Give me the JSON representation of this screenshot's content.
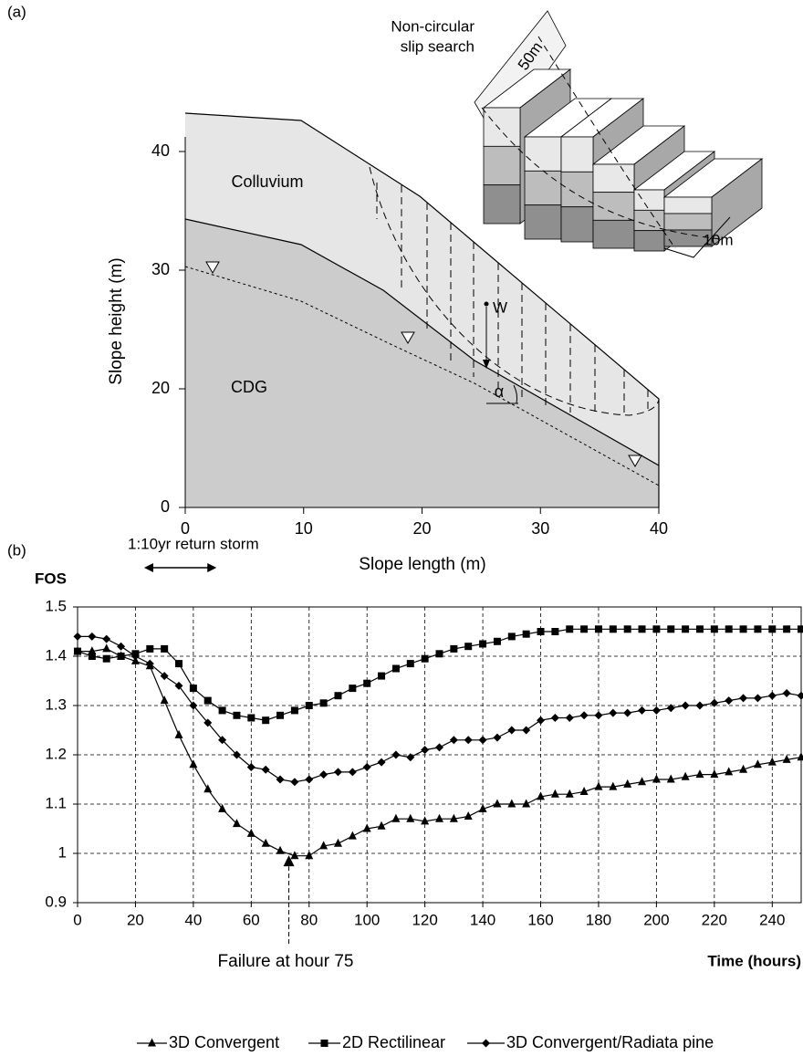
{
  "chart_data": [
    {
      "type": "profile",
      "panel_label": "(a)",
      "xlabel": "Slope length (m)",
      "ylabel": "Slope height (m)",
      "xlim": [
        0,
        40
      ],
      "ylim": [
        10,
        43
      ],
      "xticks": [
        0,
        10,
        20,
        30,
        40
      ],
      "yticks": [
        {
          "value": 10,
          "label": "0"
        },
        20,
        30,
        40
      ],
      "layers": [
        "Colluvium",
        "CDG"
      ],
      "weight_label": "W",
      "angle_label": "α",
      "search_label": [
        "Non-circular",
        "slip search"
      ],
      "length_label": "50m",
      "width_label": "10m"
    },
    {
      "type": "line",
      "panel_label": "(b)",
      "ylabel": "FOS",
      "xlabel": "Time (hours)",
      "xlim": [
        0,
        250
      ],
      "ylim": [
        0.9,
        1.5
      ],
      "xticks": [
        0,
        20,
        40,
        60,
        80,
        100,
        120,
        140,
        160,
        180,
        200,
        220,
        240
      ],
      "yticks": [
        0.9,
        1,
        1.1,
        1.2,
        1.3,
        1.4,
        1.5
      ],
      "grid": true,
      "x": [
        0,
        5,
        10,
        15,
        20,
        25,
        30,
        35,
        40,
        45,
        50,
        55,
        60,
        65,
        70,
        75,
        80,
        85,
        90,
        95,
        100,
        105,
        110,
        115,
        120,
        125,
        130,
        135,
        140,
        145,
        150,
        155,
        160,
        165,
        170,
        175,
        180,
        185,
        190,
        195,
        200,
        205,
        210,
        215,
        220,
        225,
        230,
        235,
        240,
        245,
        250
      ],
      "series": [
        {
          "name": "3D Convergent",
          "color": "#000000",
          "marker": "triangle",
          "values": [
            1.41,
            1.41,
            1.415,
            1.4,
            1.39,
            1.38,
            1.31,
            1.24,
            1.18,
            1.13,
            1.09,
            1.06,
            1.04,
            1.02,
            1.005,
            0.995,
            0.995,
            1.015,
            1.02,
            1.035,
            1.05,
            1.055,
            1.07,
            1.07,
            1.065,
            1.07,
            1.07,
            1.075,
            1.09,
            1.1,
            1.1,
            1.1,
            1.115,
            1.12,
            1.12,
            1.125,
            1.135,
            1.135,
            1.14,
            1.145,
            1.15,
            1.15,
            1.155,
            1.16,
            1.16,
            1.165,
            1.17,
            1.18,
            1.185,
            1.19,
            1.195
          ]
        },
        {
          "name": "2D Rectilinear",
          "color": "#000000",
          "marker": "square",
          "values": [
            1.41,
            1.4,
            1.395,
            1.4,
            1.405,
            1.415,
            1.415,
            1.385,
            1.335,
            1.31,
            1.29,
            1.28,
            1.275,
            1.27,
            1.28,
            1.29,
            1.3,
            1.305,
            1.32,
            1.335,
            1.345,
            1.36,
            1.375,
            1.385,
            1.395,
            1.405,
            1.415,
            1.42,
            1.425,
            1.43,
            1.44,
            1.445,
            1.45,
            1.45,
            1.455,
            1.455,
            1.455,
            1.455,
            1.455,
            1.455,
            1.455,
            1.455,
            1.455,
            1.455,
            1.455,
            1.455,
            1.455,
            1.455,
            1.455,
            1.455,
            1.455
          ]
        },
        {
          "name": "3D Convergent/Radiata pine",
          "color": "#000000",
          "marker": "diamond",
          "values": [
            1.44,
            1.44,
            1.435,
            1.42,
            1.4,
            1.385,
            1.36,
            1.34,
            1.3,
            1.265,
            1.23,
            1.2,
            1.175,
            1.17,
            1.15,
            1.145,
            1.15,
            1.16,
            1.165,
            1.165,
            1.175,
            1.185,
            1.2,
            1.195,
            1.21,
            1.215,
            1.23,
            1.23,
            1.23,
            1.235,
            1.25,
            1.25,
            1.27,
            1.275,
            1.275,
            1.28,
            1.28,
            1.285,
            1.285,
            1.29,
            1.29,
            1.295,
            1.3,
            1.3,
            1.305,
            1.31,
            1.315,
            1.315,
            1.32,
            1.325,
            1.32
          ]
        }
      ],
      "storm": {
        "label": "1:10yr return storm",
        "x_span": [
          23,
          48
        ]
      },
      "failure": {
        "label": "Failure at hour 75",
        "x": 73,
        "y": 0.985
      }
    }
  ]
}
